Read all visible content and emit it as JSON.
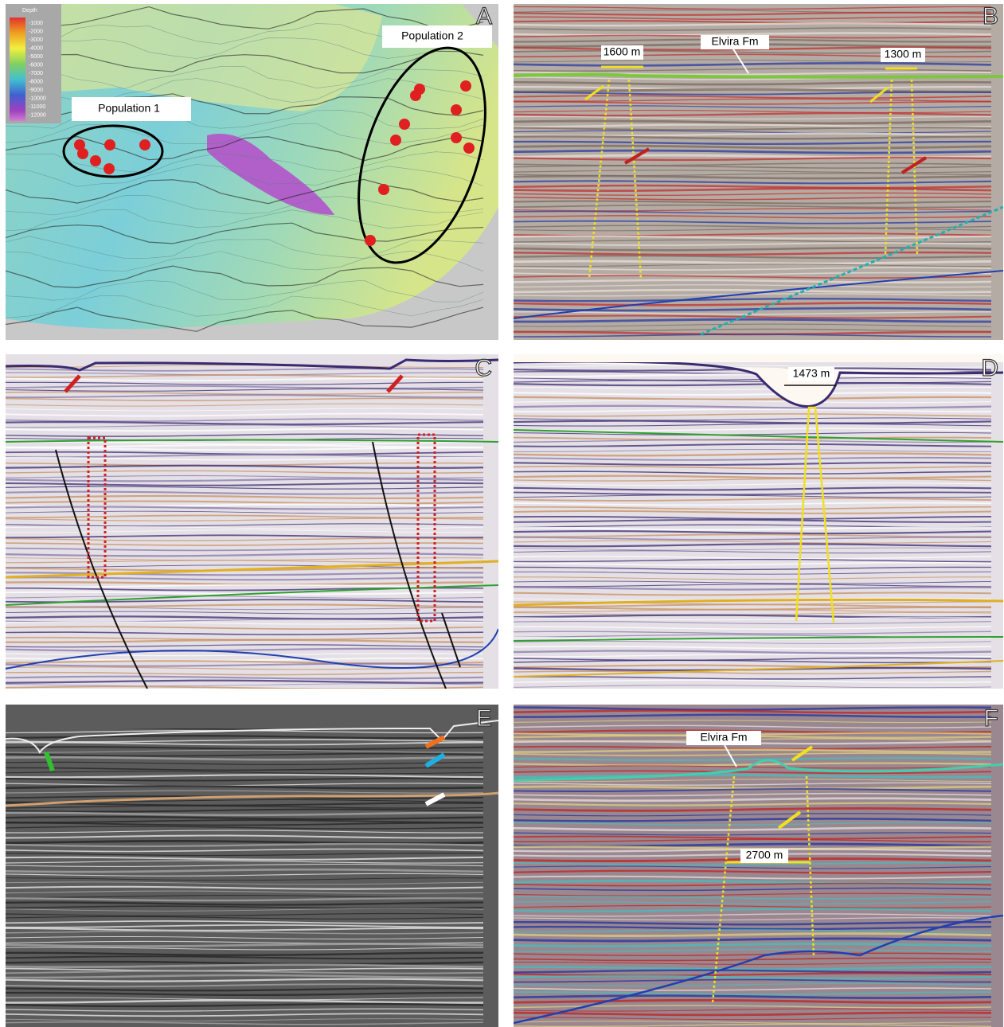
{
  "panels": [
    {
      "letter": "A",
      "labels": [
        "Population 1",
        "Population 2"
      ],
      "legend": {
        "title": "Depth",
        "ticks": [
          "-1000",
          "-2000",
          "-3000",
          "-4000",
          "-5000",
          "-6000",
          "-7000",
          "-8000",
          "-9000",
          "-10000",
          "-11000",
          "-12000"
        ]
      }
    },
    {
      "letter": "B",
      "annotations": [
        "1600 m",
        "1300 m",
        "Elvira Fm"
      ]
    },
    {
      "letter": "C"
    },
    {
      "letter": "D",
      "annotations": [
        "1473 m"
      ]
    },
    {
      "letter": "E"
    },
    {
      "letter": "F",
      "annotations": [
        "Elvira Fm",
        "2700 m"
      ]
    }
  ]
}
